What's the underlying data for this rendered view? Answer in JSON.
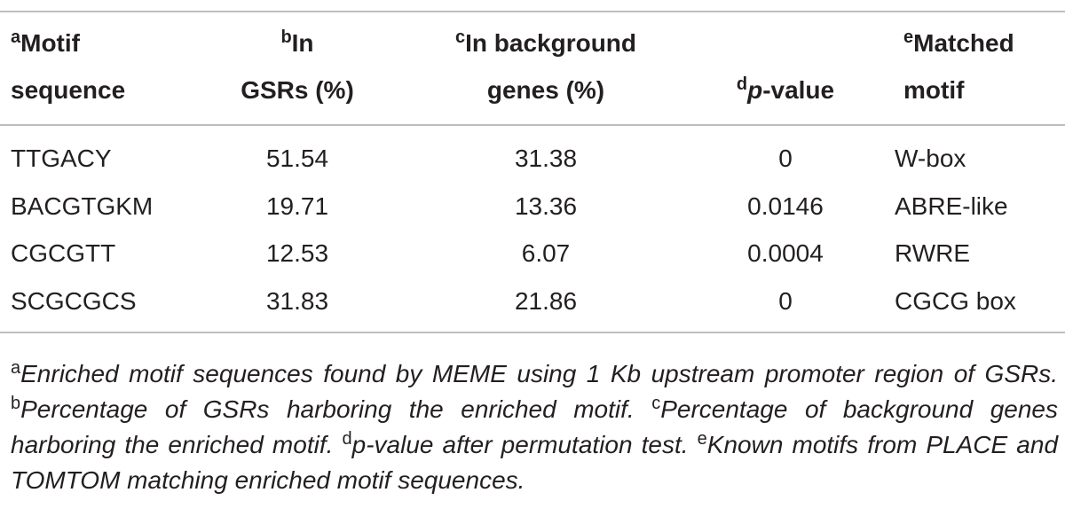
{
  "table": {
    "headers": [
      {
        "sup": "a",
        "lines": [
          "Motif",
          "sequence"
        ]
      },
      {
        "sup": "b",
        "lines": [
          "In",
          "GSRs (%)"
        ]
      },
      {
        "sup": "c",
        "lines": [
          "In background",
          "genes (%)"
        ]
      },
      {
        "sup": "d",
        "em": "p",
        "lines": [
          "-value"
        ]
      },
      {
        "sup": "e",
        "lines": [
          "Matched",
          "motif"
        ]
      }
    ],
    "rows": [
      [
        "TTGACY",
        "51.54",
        "31.38",
        "0",
        "W-box"
      ],
      [
        "BACGTGKM",
        "19.71",
        "13.36",
        "0.0146",
        "ABRE-like"
      ],
      [
        "CGCGTT",
        "12.53",
        "6.07",
        "0.0004",
        "RWRE"
      ],
      [
        "SCGCGCS",
        "31.83",
        "21.86",
        "0",
        "CGCG box"
      ]
    ]
  },
  "footnotes": [
    {
      "sup": "a",
      "text": "Enriched motif sequences found by MEME using 1 Kb upstream promoter region of GSRs."
    },
    {
      "sup": "b",
      "text": "Percentage of GSRs harboring the enriched motif."
    },
    {
      "sup": "c",
      "text": "Percentage of background genes harboring the enriched motif."
    },
    {
      "sup": "d",
      "text": "p-value after permutation test."
    },
    {
      "sup": "e",
      "text": "Known motifs from PLACE and TOMTOM matching enriched motif sequences."
    }
  ]
}
